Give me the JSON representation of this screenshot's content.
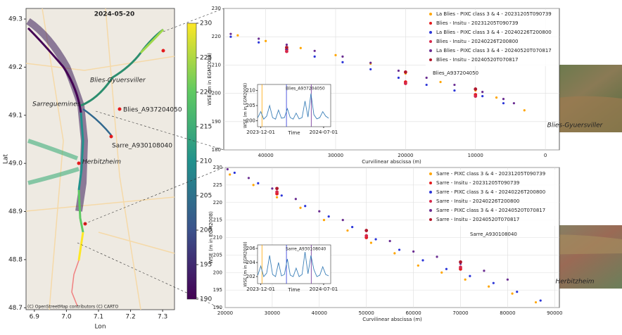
{
  "chart_data": [
    {
      "type": "map",
      "title": "2024-05-20",
      "xlabel": "Lon",
      "ylabel": "Lat",
      "xlim": [
        6.874,
        7.337
      ],
      "ylim": [
        48.696,
        49.322
      ],
      "xticks": [
        6.9,
        {
          "value": 7,
          "label": "7.0"
        },
        7.1,
        7.2,
        7.3
      ],
      "yticks": [
        48.7,
        48.8,
        48.9,
        {
          "value": 49,
          "label": "49.0"
        },
        49.1,
        49.2,
        49.3
      ],
      "places": [
        "Blies-Gyuersviller",
        "Sarreguemines",
        "Blies_A937204050",
        "Sarre_A930108040",
        "Herbitzheim"
      ],
      "attribution": "(C) OpenStreetMap contributors (C) CARTO",
      "colorbar": {
        "lim": [
          190,
          230
        ],
        "ticks": [
          190,
          195,
          200,
          205,
          210,
          215,
          220,
          225,
          230
        ]
      }
    },
    {
      "type": "scatter",
      "xlabel": "Curvilinear abscissa (m)",
      "ylabel": "WSE (m in EGM2008)",
      "xlim": [
        46000,
        -2000
      ],
      "ylim": [
        180,
        230
      ],
      "xticks": [
        40000,
        30000,
        20000,
        10000,
        0
      ],
      "yticks": [
        180,
        190,
        200,
        210,
        220,
        230
      ],
      "grid": true,
      "series": [
        {
          "name": "La Blies - PIXC class 3 & 4 -  20231205T090739",
          "color": "#ffa500",
          "x": [
            44000,
            40000,
            35000,
            30000,
            25000,
            20000,
            15000,
            10000,
            7000,
            3000
          ],
          "values": [
            220.5,
            218.5,
            216,
            213.5,
            210.5,
            207,
            204,
            201,
            198.5,
            194
          ]
        },
        {
          "name": "Blies - Insitu - 20231205T090739",
          "color": "#e41a1c",
          "x": [
            37000,
            20000,
            10000
          ],
          "values": [
            215.5,
            204,
            199.5
          ]
        },
        {
          "name": "La Blies - PIXC class 3 & 4 -  20240226T200800",
          "color": "#2b35d8",
          "x": [
            45000,
            41000,
            37000,
            33000,
            29000,
            25000,
            21000,
            17000,
            13000,
            9000,
            6000
          ],
          "values": [
            220,
            218,
            215.5,
            213,
            211,
            208.5,
            205.5,
            203,
            201,
            199,
            196.5
          ]
        },
        {
          "name": "Blies - Insitu - 20240226T200800",
          "color": "#d6274a",
          "x": [
            37000,
            20000,
            10000
          ],
          "values": [
            214.8,
            203.5,
            199
          ]
        },
        {
          "name": "La Blies - PIXC class 3 & 4 -  20240520T070817",
          "color": "#6a2c91",
          "x": [
            45000,
            41000,
            37000,
            33000,
            29000,
            25000,
            21000,
            17000,
            13000,
            9000,
            6000,
            4500
          ],
          "values": [
            221,
            219.3,
            217.2,
            215,
            213,
            210.8,
            208,
            205.5,
            203,
            200.5,
            198,
            196.5
          ]
        },
        {
          "name": "Blies - Insitu - 20240520T070817",
          "color": "#b0182c",
          "x": [
            37000,
            20000,
            10000
          ],
          "values": [
            216.2,
            207.5,
            201.5
          ]
        }
      ],
      "annotation": "Blies_A937204050",
      "photo_caption": "Blies-Gyuersviller",
      "inset": {
        "title": "Blies_A937204050",
        "xlabel": "Time",
        "ylabel": "WSE (m in EGM2008)",
        "xlim": [
          "2023-11-20",
          "2024-07-25"
        ],
        "ylim": [
          198,
          212
        ],
        "yticks": [
          200,
          205,
          210
        ],
        "xticks": [
          "2023-12-01",
          "2024-07-01"
        ],
        "color": "#3b7fb8",
        "vlines": [
          {
            "x": "2023-12-05",
            "color": "#ffa500"
          },
          {
            "x": "2024-02-26",
            "color": "#2b35d8"
          },
          {
            "x": "2024-05-20",
            "color": "#6a2c91"
          }
        ],
        "x": [
          "2023-11-21",
          "2023-12-01",
          "2023-12-11",
          "2023-12-21",
          "2023-12-31",
          "2024-01-10",
          "2024-01-20",
          "2024-01-30",
          "2024-02-09",
          "2024-02-19",
          "2024-02-29",
          "2024-03-10",
          "2024-03-20",
          "2024-03-30",
          "2024-04-09",
          "2024-04-19",
          "2024-04-29",
          "2024-05-09",
          "2024-05-19",
          "2024-05-29",
          "2024-06-08",
          "2024-06-18",
          "2024-06-28",
          "2024-07-08",
          "2024-07-18"
        ],
        "values": [
          201,
          203,
          200.5,
          201.5,
          205,
          201,
          200.5,
          203.5,
          200.8,
          201,
          204,
          201,
          200.5,
          202.5,
          200.6,
          201,
          206.5,
          201.2,
          209,
          202,
          200.6,
          201,
          203,
          201.5,
          200.8
        ]
      }
    },
    {
      "type": "scatter",
      "xlabel": "Curvilinear abscissa (m)",
      "ylabel": "WSE (m in EGM2008)",
      "xlim": [
        20000,
        91000
      ],
      "ylim": [
        190,
        230
      ],
      "xticks": [
        20000,
        30000,
        40000,
        50000,
        60000,
        70000,
        80000,
        90000
      ],
      "yticks": [
        190,
        195,
        200,
        205,
        210,
        215,
        220,
        225,
        230
      ],
      "grid": true,
      "series": [
        {
          "name": "Sarre - PIXC class 3 & 4 -  20231205T090739",
          "color": "#ffa500",
          "x": [
            21000,
            26000,
            31000,
            36000,
            41000,
            46000,
            51000,
            56000,
            61000,
            66000,
            71000,
            76000,
            81000,
            86000
          ],
          "values": [
            228,
            225,
            221.5,
            218.5,
            215,
            212,
            208.5,
            205.5,
            202,
            200,
            198,
            196,
            194,
            191.5
          ]
        },
        {
          "name": "Sarre - Insitu - 20231205T090739",
          "color": "#e41a1c",
          "x": [
            31000,
            50000,
            70000
          ],
          "values": [
            222.5,
            210,
            201
          ]
        },
        {
          "name": "Sarre - PIXC class 3 & 4 -  20240226T200800",
          "color": "#2b35d8",
          "x": [
            22000,
            27000,
            32000,
            37000,
            42000,
            47000,
            52000,
            57000,
            62000,
            67000,
            72000,
            77000,
            82000,
            87000
          ],
          "values": [
            228.5,
            225.5,
            222,
            219,
            216,
            213,
            209.5,
            206.5,
            203.5,
            201,
            199,
            197,
            194.5,
            192
          ]
        },
        {
          "name": "Sarre - Insitu - 20240226T200800",
          "color": "#d6274a",
          "x": [
            31000,
            50000,
            70000
          ],
          "values": [
            223,
            210.5,
            201.5
          ]
        },
        {
          "name": "Sarre - PIXC class 3 & 4 - 20240520T070817",
          "color": "#6a2c91",
          "x": [
            20500,
            25000,
            30000,
            35000,
            40000,
            45000,
            50000,
            55000,
            60000,
            65000,
            70000,
            75000,
            80000
          ],
          "values": [
            229.5,
            227,
            224,
            221,
            217.5,
            215,
            212,
            209,
            206,
            204.5,
            202.5,
            200.5,
            198
          ]
        },
        {
          "name": "Sarre - Insitu - 20240520T070817",
          "color": "#b0182c",
          "x": [
            31000,
            50000,
            70000
          ],
          "values": [
            224,
            212,
            203
          ]
        }
      ],
      "annotation": "Sarre_A930108040",
      "photo_caption": "Herbitzheim",
      "inset": {
        "title": "Sarre_A930108040",
        "xlabel": "Time",
        "ylabel": "WSE (m in EGM2008)",
        "xlim": [
          "2023-11-20",
          "2024-07-25"
        ],
        "ylim": [
          201,
          206.5
        ],
        "yticks": [
          202,
          204,
          206
        ],
        "xticks": [
          "2023-12-01",
          "2024-07-01"
        ],
        "color": "#3b7fb8",
        "vlines": [
          {
            "x": "2023-12-05",
            "color": "#ffa500"
          },
          {
            "x": "2024-02-26",
            "color": "#2b35d8"
          },
          {
            "x": "2024-05-20",
            "color": "#6a2c91"
          }
        ],
        "x": [
          "2023-11-21",
          "2023-12-01",
          "2023-12-11",
          "2023-12-21",
          "2023-12-31",
          "2024-01-10",
          "2024-01-20",
          "2024-01-30",
          "2024-02-09",
          "2024-02-19",
          "2024-02-29",
          "2024-03-10",
          "2024-03-20",
          "2024-03-30",
          "2024-04-09",
          "2024-04-19",
          "2024-04-29",
          "2024-05-09",
          "2024-05-19",
          "2024-05-29",
          "2024-06-08",
          "2024-06-18",
          "2024-06-28",
          "2024-07-08",
          "2024-07-18"
        ],
        "values": [
          202.2,
          203.5,
          202,
          202.5,
          205,
          202.3,
          202,
          204,
          202.1,
          202.3,
          204.5,
          202.2,
          202,
          203.2,
          202,
          202.3,
          205.5,
          202.4,
          205,
          203,
          202,
          202.2,
          203.4,
          202.3,
          202.1
        ]
      }
    }
  ]
}
